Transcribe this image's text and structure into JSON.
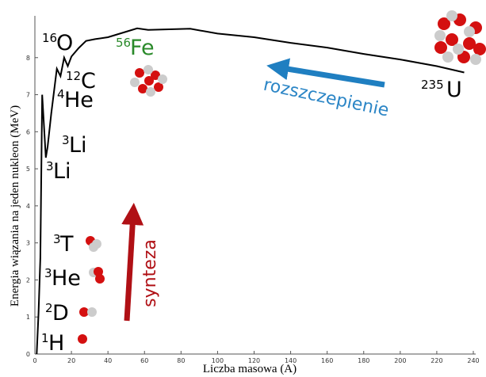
{
  "chart_data": {
    "type": "line",
    "x_label": "Liczba masowa (A)",
    "y_label": "Energia wiązania na jeden nukleon (MeV)",
    "x": [
      1,
      2,
      3,
      4,
      6,
      7,
      9,
      12,
      14,
      16,
      18,
      20,
      24,
      28,
      33,
      40,
      50,
      56,
      62,
      85,
      100,
      120,
      140,
      160,
      180,
      200,
      220,
      235
    ],
    "values": [
      0,
      1.1,
      2.6,
      7.0,
      5.3,
      5.6,
      6.5,
      7.7,
      7.5,
      8.0,
      7.77,
      8.03,
      8.26,
      8.45,
      8.5,
      8.55,
      8.7,
      8.79,
      8.75,
      8.78,
      8.65,
      8.55,
      8.4,
      8.27,
      8.1,
      7.95,
      7.77,
      7.6
    ],
    "color": "#000000",
    "xlim": [
      0,
      240
    ],
    "xticks": [
      0,
      20,
      40,
      60,
      80,
      100,
      120,
      140,
      160,
      180,
      200,
      220,
      240
    ],
    "ylim": [
      0,
      9
    ],
    "yticks": [
      0,
      1,
      2,
      3,
      4,
      5,
      6,
      7,
      8
    ],
    "grid": false,
    "labels": [
      {
        "mass": "16",
        "symbol": "O"
      },
      {
        "mass": "56",
        "symbol": "Fe"
      },
      {
        "mass": "12",
        "symbol": "C"
      },
      {
        "mass": "4",
        "symbol": "He"
      },
      {
        "mass": "3",
        "symbol": "Li"
      },
      {
        "mass": "3",
        "symbol": "Li"
      },
      {
        "mass": "3",
        "symbol": "T"
      },
      {
        "mass": "3",
        "symbol": "He"
      },
      {
        "mass": "2",
        "symbol": "D"
      },
      {
        "mass": "1",
        "symbol": "H"
      },
      {
        "mass": "235",
        "symbol": "U"
      }
    ],
    "fission_label": "rozszczepienie",
    "fusion_label": "synteza"
  }
}
